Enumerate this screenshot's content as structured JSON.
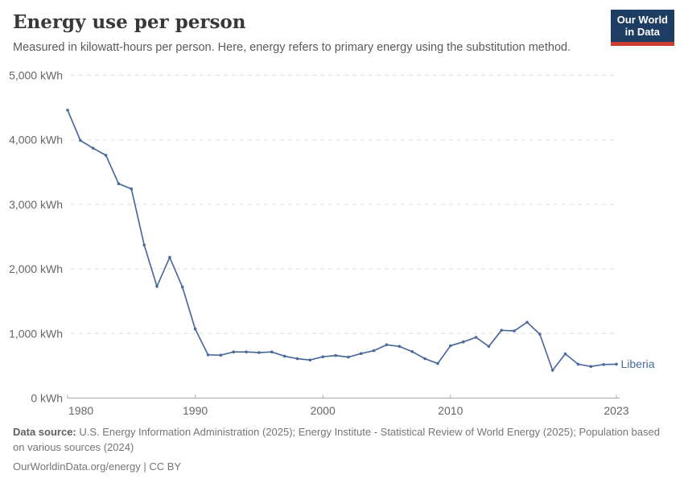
{
  "header": {
    "title": "Energy use per person",
    "subtitle": "Measured in kilowatt-hours per person. Here, energy refers to primary energy using the substitution method.",
    "logo": {
      "line1": "Our World",
      "line2": "in Data"
    }
  },
  "chart_data": {
    "type": "line",
    "title": "Energy use per person",
    "xlabel": "",
    "ylabel": "kilowatt-hours per person",
    "ylim": [
      0,
      5000
    ],
    "grid": "horizontal-dashed",
    "legend_position": "end-of-line-label",
    "end_label": "Liberia",
    "x": [
      1980,
      1981,
      1982,
      1983,
      1984,
      1985,
      1986,
      1987,
      1988,
      1989,
      1990,
      1991,
      1992,
      1993,
      1994,
      1995,
      1996,
      1997,
      1998,
      1999,
      2000,
      2001,
      2002,
      2003,
      2004,
      2005,
      2006,
      2007,
      2008,
      2009,
      2010,
      2011,
      2012,
      2013,
      2014,
      2015,
      2016,
      2017,
      2018,
      2019,
      2020,
      2021,
      2022,
      2023
    ],
    "series": [
      {
        "name": "Liberia",
        "color": "#4C6A9C",
        "values": [
          4460,
          3990,
          3870,
          3760,
          3320,
          3240,
          2370,
          1730,
          2180,
          1720,
          1070,
          670,
          665,
          715,
          715,
          705,
          715,
          650,
          610,
          590,
          640,
          660,
          635,
          690,
          735,
          825,
          800,
          720,
          610,
          535,
          810,
          870,
          940,
          800,
          1050,
          1040,
          1175,
          990,
          430,
          685,
          525,
          490,
          520,
          525
        ]
      }
    ],
    "yticks": [
      {
        "value": 0,
        "label": "0 kWh"
      },
      {
        "value": 1000,
        "label": "1,000 kWh"
      },
      {
        "value": 2000,
        "label": "2,000 kWh"
      },
      {
        "value": 3000,
        "label": "3,000 kWh"
      },
      {
        "value": 4000,
        "label": "4,000 kWh"
      },
      {
        "value": 5000,
        "label": "5,000 kWh"
      }
    ],
    "xticks": [
      1980,
      1990,
      2000,
      2010,
      2023
    ]
  },
  "footer": {
    "datasource_label": "Data source:",
    "datasource_text": " U.S. Energy Information Administration (2025); Energy Institute - Statistical Review of World Energy (2025); Population based on various sources (2024)",
    "link": "OurWorldinData.org/energy",
    "license_text": "| CC BY"
  },
  "colors": {
    "line": "#4C6A9C",
    "logo_navy": "#1d3d63",
    "logo_red": "#cd3c30",
    "gridline": "#dedede",
    "axis": "#a8a8a8",
    "tick_text": "#666666"
  }
}
